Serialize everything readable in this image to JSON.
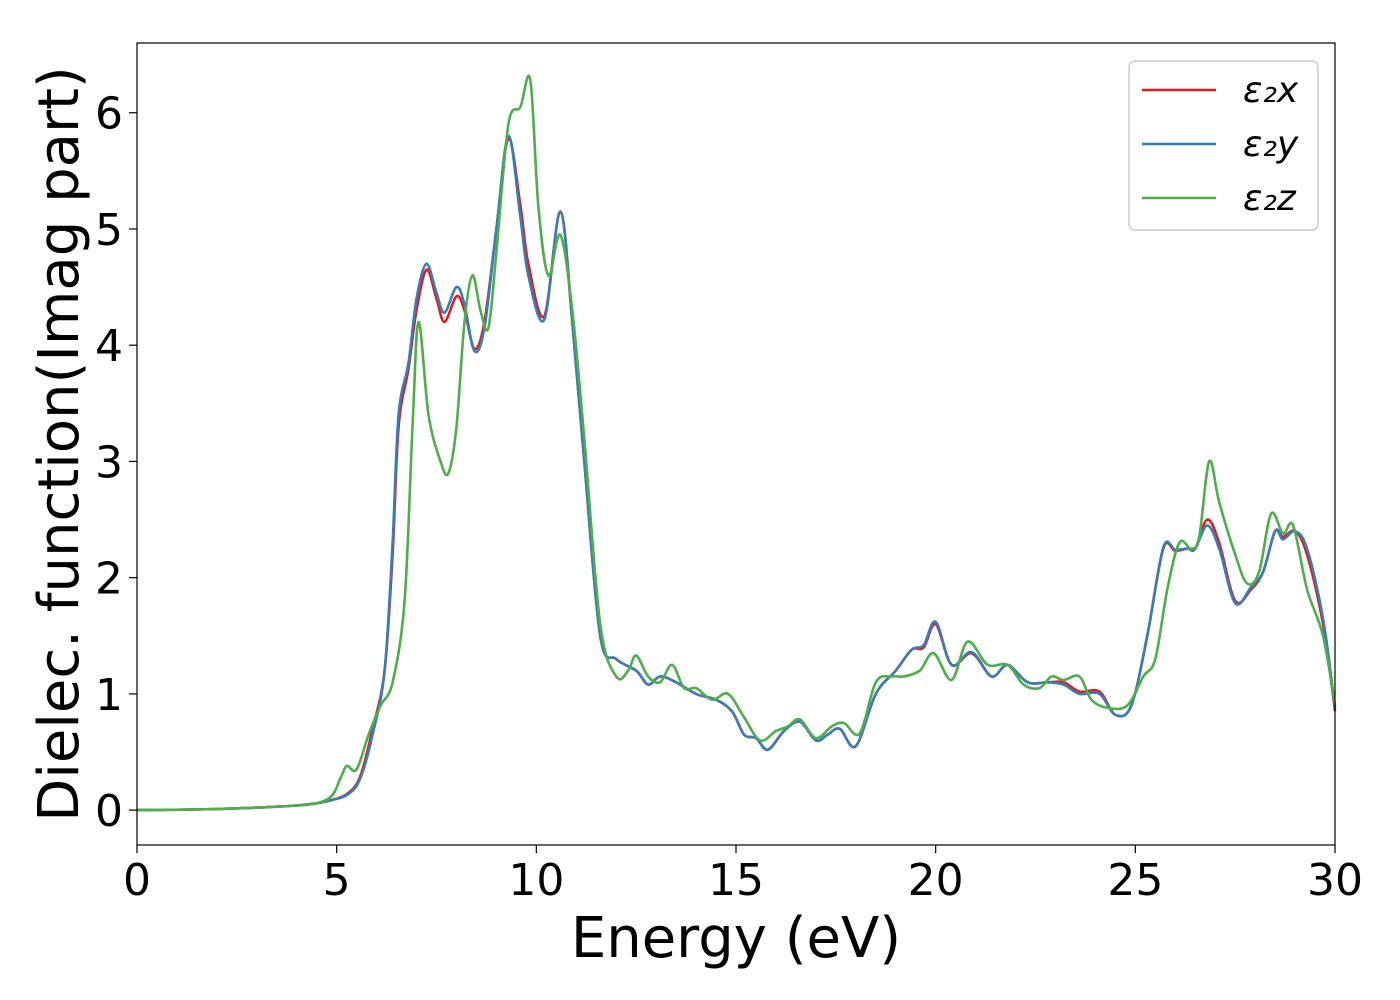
{
  "chart_data": {
    "type": "line",
    "xlabel": "Energy (eV)",
    "ylabel": "Dielec. function(Imag part)",
    "xlim": [
      0,
      30
    ],
    "ylim": [
      -0.3,
      6.6
    ],
    "x_ticks": [
      0,
      5,
      10,
      15,
      20,
      25,
      30
    ],
    "y_ticks": [
      0,
      1,
      2,
      3,
      4,
      5,
      6
    ],
    "x_tick_labels": [
      "0",
      "5",
      "10",
      "15",
      "20",
      "25",
      "30"
    ],
    "y_tick_labels": [
      "0",
      "1",
      "2",
      "3",
      "4",
      "5",
      "6"
    ],
    "grid": false,
    "legend_position": "top-right",
    "series": [
      {
        "name": "ε₂x",
        "color": "#e41a1c",
        "points": [
          [
            0,
            0
          ],
          [
            2,
            0.01
          ],
          [
            4,
            0.04
          ],
          [
            4.8,
            0.08
          ],
          [
            5.3,
            0.15
          ],
          [
            5.6,
            0.3
          ],
          [
            5.9,
            0.7
          ],
          [
            6.2,
            1.2
          ],
          [
            6.4,
            2.2
          ],
          [
            6.55,
            3.3
          ],
          [
            6.8,
            3.8
          ],
          [
            7.0,
            4.3
          ],
          [
            7.25,
            4.65
          ],
          [
            7.5,
            4.4
          ],
          [
            7.7,
            4.2
          ],
          [
            8.0,
            4.42
          ],
          [
            8.2,
            4.3
          ],
          [
            8.45,
            3.97
          ],
          [
            8.7,
            4.2
          ],
          [
            9.0,
            5.0
          ],
          [
            9.3,
            5.78
          ],
          [
            9.6,
            5.2
          ],
          [
            9.8,
            4.7
          ],
          [
            10.2,
            4.25
          ],
          [
            10.6,
            5.15
          ],
          [
            10.9,
            4.2
          ],
          [
            11.2,
            3.0
          ],
          [
            11.6,
            1.5
          ],
          [
            12.0,
            1.3
          ],
          [
            12.5,
            1.2
          ],
          [
            12.8,
            1.08
          ],
          [
            13.1,
            1.15
          ],
          [
            13.5,
            1.1
          ],
          [
            14.0,
            1.0
          ],
          [
            14.5,
            0.95
          ],
          [
            14.9,
            0.85
          ],
          [
            15.2,
            0.65
          ],
          [
            15.5,
            0.62
          ],
          [
            15.8,
            0.52
          ],
          [
            16.2,
            0.68
          ],
          [
            16.6,
            0.76
          ],
          [
            17.0,
            0.6
          ],
          [
            17.3,
            0.65
          ],
          [
            17.6,
            0.7
          ],
          [
            18.0,
            0.55
          ],
          [
            18.5,
            1.0
          ],
          [
            19.0,
            1.2
          ],
          [
            19.4,
            1.38
          ],
          [
            19.7,
            1.4
          ],
          [
            20.0,
            1.6
          ],
          [
            20.4,
            1.25
          ],
          [
            20.9,
            1.35
          ],
          [
            21.4,
            1.15
          ],
          [
            21.8,
            1.25
          ],
          [
            22.3,
            1.1
          ],
          [
            22.8,
            1.1
          ],
          [
            23.2,
            1.1
          ],
          [
            23.6,
            1.02
          ],
          [
            24.1,
            1.02
          ],
          [
            24.5,
            0.82
          ],
          [
            24.9,
            0.9
          ],
          [
            25.3,
            1.5
          ],
          [
            25.7,
            2.25
          ],
          [
            26.0,
            2.23
          ],
          [
            26.3,
            2.25
          ],
          [
            26.5,
            2.25
          ],
          [
            26.8,
            2.5
          ],
          [
            27.1,
            2.3
          ],
          [
            27.5,
            1.8
          ],
          [
            27.9,
            1.9
          ],
          [
            28.2,
            2.05
          ],
          [
            28.5,
            2.4
          ],
          [
            28.7,
            2.35
          ],
          [
            29.0,
            2.4
          ],
          [
            29.3,
            2.2
          ],
          [
            29.7,
            1.6
          ],
          [
            30.0,
            0.85
          ]
        ]
      },
      {
        "name": "ε₂y",
        "color": "#377eb8",
        "points": [
          [
            0,
            0
          ],
          [
            2,
            0.01
          ],
          [
            4,
            0.04
          ],
          [
            4.8,
            0.08
          ],
          [
            5.3,
            0.14
          ],
          [
            5.6,
            0.28
          ],
          [
            5.9,
            0.65
          ],
          [
            6.2,
            1.2
          ],
          [
            6.4,
            2.3
          ],
          [
            6.55,
            3.4
          ],
          [
            6.8,
            3.85
          ],
          [
            7.0,
            4.4
          ],
          [
            7.25,
            4.7
          ],
          [
            7.5,
            4.45
          ],
          [
            7.7,
            4.28
          ],
          [
            8.0,
            4.5
          ],
          [
            8.2,
            4.35
          ],
          [
            8.45,
            3.95
          ],
          [
            8.7,
            4.15
          ],
          [
            9.0,
            5.0
          ],
          [
            9.3,
            5.8
          ],
          [
            9.6,
            5.1
          ],
          [
            9.8,
            4.6
          ],
          [
            10.2,
            4.22
          ],
          [
            10.6,
            5.15
          ],
          [
            10.9,
            4.2
          ],
          [
            11.2,
            3.0
          ],
          [
            11.6,
            1.5
          ],
          [
            12.0,
            1.3
          ],
          [
            12.5,
            1.2
          ],
          [
            12.8,
            1.08
          ],
          [
            13.1,
            1.15
          ],
          [
            13.5,
            1.1
          ],
          [
            14.0,
            1.0
          ],
          [
            14.5,
            0.95
          ],
          [
            14.9,
            0.85
          ],
          [
            15.2,
            0.65
          ],
          [
            15.5,
            0.62
          ],
          [
            15.8,
            0.52
          ],
          [
            16.2,
            0.68
          ],
          [
            16.6,
            0.76
          ],
          [
            17.0,
            0.6
          ],
          [
            17.3,
            0.65
          ],
          [
            17.6,
            0.7
          ],
          [
            18.0,
            0.55
          ],
          [
            18.5,
            1.0
          ],
          [
            19.0,
            1.2
          ],
          [
            19.4,
            1.38
          ],
          [
            19.7,
            1.42
          ],
          [
            20.0,
            1.62
          ],
          [
            20.4,
            1.25
          ],
          [
            20.9,
            1.36
          ],
          [
            21.4,
            1.15
          ],
          [
            21.8,
            1.25
          ],
          [
            22.3,
            1.1
          ],
          [
            22.8,
            1.1
          ],
          [
            23.2,
            1.08
          ],
          [
            23.6,
            1.0
          ],
          [
            24.1,
            1.0
          ],
          [
            24.5,
            0.82
          ],
          [
            24.9,
            0.9
          ],
          [
            25.3,
            1.5
          ],
          [
            25.7,
            2.26
          ],
          [
            26.0,
            2.24
          ],
          [
            26.3,
            2.25
          ],
          [
            26.5,
            2.25
          ],
          [
            26.8,
            2.45
          ],
          [
            27.1,
            2.25
          ],
          [
            27.5,
            1.78
          ],
          [
            27.9,
            1.92
          ],
          [
            28.2,
            2.05
          ],
          [
            28.5,
            2.4
          ],
          [
            28.7,
            2.33
          ],
          [
            29.0,
            2.4
          ],
          [
            29.3,
            2.25
          ],
          [
            29.7,
            1.65
          ],
          [
            30.0,
            0.88
          ]
        ]
      },
      {
        "name": "ε₂z",
        "color": "#4daf4a",
        "points": [
          [
            0,
            0
          ],
          [
            2,
            0.01
          ],
          [
            4,
            0.04
          ],
          [
            4.8,
            0.1
          ],
          [
            5.1,
            0.28
          ],
          [
            5.25,
            0.38
          ],
          [
            5.5,
            0.35
          ],
          [
            5.8,
            0.65
          ],
          [
            6.1,
            0.9
          ],
          [
            6.4,
            1.1
          ],
          [
            6.7,
            1.8
          ],
          [
            6.9,
            3.3
          ],
          [
            7.05,
            4.2
          ],
          [
            7.3,
            3.4
          ],
          [
            7.6,
            3.0
          ],
          [
            7.8,
            2.9
          ],
          [
            8.0,
            3.3
          ],
          [
            8.2,
            4.2
          ],
          [
            8.4,
            4.6
          ],
          [
            8.6,
            4.3
          ],
          [
            8.8,
            4.15
          ],
          [
            9.0,
            4.8
          ],
          [
            9.3,
            5.9
          ],
          [
            9.6,
            6.05
          ],
          [
            9.85,
            6.28
          ],
          [
            10.05,
            5.2
          ],
          [
            10.3,
            4.6
          ],
          [
            10.6,
            4.95
          ],
          [
            10.9,
            4.3
          ],
          [
            11.2,
            3.2
          ],
          [
            11.6,
            1.6
          ],
          [
            12.0,
            1.15
          ],
          [
            12.3,
            1.2
          ],
          [
            12.5,
            1.33
          ],
          [
            12.8,
            1.15
          ],
          [
            13.1,
            1.1
          ],
          [
            13.4,
            1.25
          ],
          [
            13.7,
            1.05
          ],
          [
            14.0,
            1.05
          ],
          [
            14.4,
            0.95
          ],
          [
            14.8,
            1.0
          ],
          [
            15.2,
            0.8
          ],
          [
            15.6,
            0.6
          ],
          [
            16.0,
            0.68
          ],
          [
            16.3,
            0.72
          ],
          [
            16.6,
            0.78
          ],
          [
            17.0,
            0.62
          ],
          [
            17.4,
            0.72
          ],
          [
            17.7,
            0.75
          ],
          [
            18.1,
            0.66
          ],
          [
            18.5,
            1.1
          ],
          [
            18.9,
            1.15
          ],
          [
            19.2,
            1.15
          ],
          [
            19.6,
            1.2
          ],
          [
            19.95,
            1.35
          ],
          [
            20.4,
            1.12
          ],
          [
            20.8,
            1.45
          ],
          [
            21.3,
            1.25
          ],
          [
            21.8,
            1.25
          ],
          [
            22.2,
            1.08
          ],
          [
            22.6,
            1.05
          ],
          [
            22.9,
            1.15
          ],
          [
            23.2,
            1.12
          ],
          [
            23.6,
            1.15
          ],
          [
            23.9,
            0.95
          ],
          [
            24.3,
            0.88
          ],
          [
            24.8,
            0.9
          ],
          [
            25.2,
            1.15
          ],
          [
            25.5,
            1.3
          ],
          [
            25.8,
            1.9
          ],
          [
            26.1,
            2.3
          ],
          [
            26.4,
            2.25
          ],
          [
            26.6,
            2.35
          ],
          [
            26.85,
            3.0
          ],
          [
            27.1,
            2.65
          ],
          [
            27.5,
            2.2
          ],
          [
            27.8,
            1.95
          ],
          [
            28.1,
            2.05
          ],
          [
            28.4,
            2.55
          ],
          [
            28.7,
            2.38
          ],
          [
            28.95,
            2.45
          ],
          [
            29.3,
            1.9
          ],
          [
            29.7,
            1.5
          ],
          [
            30.0,
            0.9
          ]
        ]
      }
    ]
  }
}
